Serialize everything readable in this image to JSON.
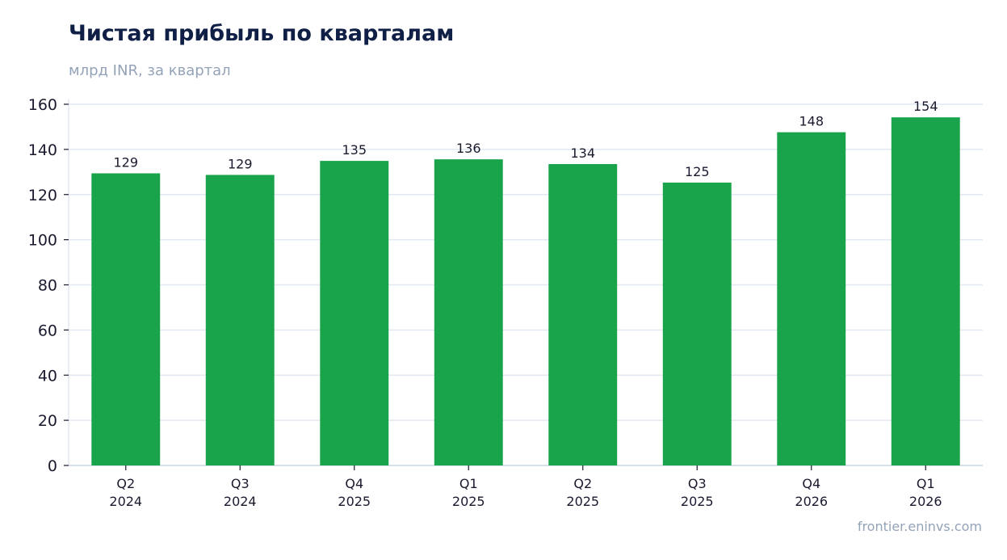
{
  "chart_data": {
    "type": "bar",
    "title": "Чистая прибыль по кварталам",
    "subtitle": "млрд INR, за квартал",
    "categories": [
      [
        "Q2",
        "2024"
      ],
      [
        "Q3",
        "2024"
      ],
      [
        "Q4",
        "2025"
      ],
      [
        "Q1",
        "2025"
      ],
      [
        "Q2",
        "2025"
      ],
      [
        "Q3",
        "2025"
      ],
      [
        "Q4",
        "2026"
      ],
      [
        "Q1",
        "2026"
      ]
    ],
    "values": [
      129.4,
      128.7,
      134.9,
      135.6,
      133.5,
      125.3,
      147.6,
      154.2
    ],
    "value_labels": [
      "129",
      "129",
      "135",
      "136",
      "134",
      "125",
      "148",
      "154"
    ],
    "ylim": [
      0,
      160
    ],
    "yticks": [
      0,
      20,
      40,
      60,
      80,
      100,
      120,
      140,
      160
    ],
    "grid": true,
    "bar_color": "#19a34a",
    "grid_color": "#e2e8f0",
    "axis_color": "#cbd5e1"
  },
  "source": "frontier.eninvs.com"
}
